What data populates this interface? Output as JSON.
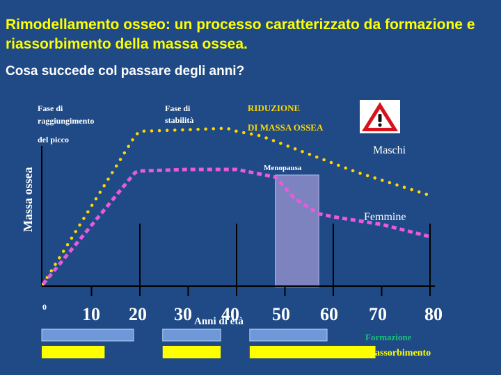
{
  "slide": {
    "title": "Rimodellamento osseo: un processo caratterizzato da formazione e riassorbimento della massa ossea.",
    "question": "Cosa succede col passare degli anni?"
  },
  "annotations": {
    "phase_peak": [
      "Fase di",
      "raggiungimento",
      "del picco"
    ],
    "phase_stability": [
      "Fase di",
      "stabilità"
    ],
    "reduction": [
      "RIDUZIONE",
      "DI MASSA OSSEA"
    ],
    "menopause": "Menopausa"
  },
  "legend": {
    "formazione": "Formazione",
    "riassorbimento": "Riassorbimento"
  },
  "icons": {
    "warning": "warning-icon"
  },
  "colors": {
    "background": "#1f4a86",
    "maschi": "#ffd700",
    "femmine": "#e85bdc",
    "menopause_band": "#8d8dc9",
    "formazione": "#19c07a",
    "riassorbimento": "#ffff00",
    "formation_bar": "#6f98d8",
    "resorption_bar": "#ffff00"
  },
  "chart_data": {
    "type": "line",
    "title": "",
    "xlabel": "Anni di età",
    "ylabel": "Massa ossea",
    "x_ticks": [
      "0",
      "10",
      "20",
      "30",
      "40",
      "50",
      "60",
      "70",
      "80"
    ],
    "xlim": [
      0,
      80
    ],
    "ylim": [
      0,
      100
    ],
    "menopause_range": [
      48,
      57
    ],
    "series": [
      {
        "name": "Maschi",
        "x": [
          0,
          19,
          20,
          30,
          38,
          40,
          45,
          50,
          55,
          60,
          65,
          70,
          75,
          80
        ],
        "y": [
          0,
          97,
          100,
          101,
          102,
          100,
          97,
          91,
          85,
          79,
          73,
          68,
          63,
          58
        ]
      },
      {
        "name": "Femmine",
        "x": [
          0,
          19,
          20,
          30,
          40,
          48,
          52,
          57,
          60,
          70,
          80
        ],
        "y": [
          0,
          73,
          74,
          75,
          75,
          70,
          56,
          46,
          44,
          39,
          31
        ]
      }
    ],
    "formation_bars": [
      [
        0,
        19
      ],
      [
        25,
        37
      ],
      [
        43,
        59
      ]
    ],
    "resorption_bars": [
      [
        0,
        13
      ],
      [
        25,
        37
      ],
      [
        43,
        69
      ]
    ]
  }
}
